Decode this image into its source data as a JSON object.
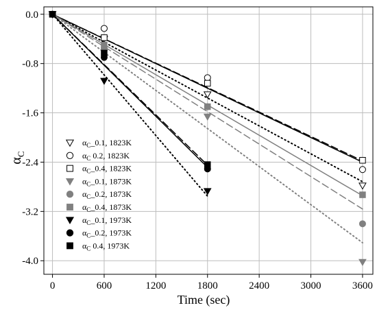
{
  "chart_data": {
    "type": "scatter",
    "xlabel": "Time (sec)",
    "ylabel": {
      "main": "α",
      "sub": "C"
    },
    "xlim": [
      -100,
      3720
    ],
    "ylim": [
      -4.22,
      0.12
    ],
    "xticks": [
      0,
      600,
      1200,
      1800,
      2400,
      3000,
      3600
    ],
    "xtick_labels": [
      "0",
      "600",
      "1200",
      "1800",
      "2400",
      "3000",
      "3600"
    ],
    "yticks": [
      0.0,
      -0.8,
      -1.6,
      -2.4,
      -3.2,
      -4.0
    ],
    "ytick_labels": [
      "0.0",
      "-0.8",
      "-1.6",
      "-2.4",
      "-3.2",
      "-4.0"
    ],
    "grid": true,
    "legend_position": "lower-left",
    "series": [
      {
        "name": {
          "pre": "α",
          "sub": "C",
          "post": "_0.1, 1823K"
        },
        "marker": "triangle-down",
        "filled": false,
        "color": "#000000",
        "x": [
          0,
          600,
          1800,
          3600
        ],
        "y": [
          0.0,
          -0.4,
          -1.3,
          -2.78
        ],
        "fit": {
          "slope": -0.000755,
          "intercept": 0.0,
          "x_end": 3600,
          "style": "dotted",
          "color": "#000000"
        }
      },
      {
        "name": {
          "pre": "α",
          "sub": "C",
          "post": " 0.2, 1823K"
        },
        "marker": "circle",
        "filled": false,
        "color": "#000000",
        "x": [
          0,
          600,
          1800,
          3600
        ],
        "y": [
          0.0,
          -0.23,
          -1.03,
          -2.52
        ],
        "fit": {
          "slope": -0.000667,
          "intercept": 0.0,
          "x_end": 3600,
          "style": "solid",
          "color": "#000000"
        }
      },
      {
        "name": {
          "pre": "α",
          "sub": "C",
          "post": "_0.4, 1823K"
        },
        "marker": "square",
        "filled": false,
        "color": "#000000",
        "x": [
          0,
          600,
          1800,
          3600
        ],
        "y": [
          0.0,
          -0.38,
          -1.12,
          -2.37
        ],
        "fit": {
          "slope": -0.000661,
          "intercept": 0.0,
          "x_end": 3600,
          "style": "dashed",
          "color": "#000000"
        }
      },
      {
        "name": {
          "pre": "α",
          "sub": "C",
          "post": "_0.1, 1873K"
        },
        "marker": "triangle-down",
        "filled": true,
        "color": "#808080",
        "x": [
          0,
          600,
          1800,
          3600
        ],
        "y": [
          0.0,
          -0.62,
          -1.66,
          -4.02
        ],
        "fit": {
          "slope": -0.00103,
          "intercept": 0.0,
          "x_end": 3600,
          "style": "dotted",
          "color": "#808080"
        }
      },
      {
        "name": {
          "pre": "α",
          "sub": "C",
          "post": "_0.2, 1873K"
        },
        "marker": "circle",
        "filled": true,
        "color": "#808080",
        "x": [
          0,
          600,
          1800,
          3600
        ],
        "y": [
          0.0,
          -0.55,
          -1.5,
          -3.4
        ],
        "fit": {
          "slope": -0.000878,
          "intercept": 0.0,
          "x_end": 3600,
          "style": "dashed",
          "color": "#808080"
        }
      },
      {
        "name": {
          "pre": "α",
          "sub": "C",
          "post": "_0.4, 1873K"
        },
        "marker": "square",
        "filled": true,
        "color": "#808080",
        "x": [
          0,
          600,
          1800,
          3600
        ],
        "y": [
          0.0,
          -0.5,
          -1.5,
          -2.93
        ],
        "fit": {
          "slope": -0.000818,
          "intercept": 0.0,
          "x_end": 3600,
          "style": "solid",
          "color": "#808080"
        }
      },
      {
        "name": {
          "pre": "α",
          "sub": "C",
          "post": "_0.1, 1973K"
        },
        "marker": "triangle-down",
        "filled": true,
        "color": "#000000",
        "x": [
          0,
          600,
          1800
        ],
        "y": [
          0.0,
          -1.08,
          -2.87
        ],
        "fit": {
          "slope": -0.00164,
          "intercept": 0.0,
          "x_end": 1800,
          "style": "dotted",
          "color": "#000000"
        }
      },
      {
        "name": {
          "pre": "α",
          "sub": "C",
          "post": "_0.2, 1973K"
        },
        "marker": "circle",
        "filled": true,
        "color": "#000000",
        "x": [
          0,
          600,
          1800
        ],
        "y": [
          0.0,
          -0.7,
          -2.51
        ],
        "fit": {
          "slope": -0.00138,
          "intercept": 0.0,
          "x_end": 1800,
          "style": "solid",
          "color": "#000000"
        }
      },
      {
        "name": {
          "pre": "α",
          "sub": "C",
          "post": " 0.4, 1973K"
        },
        "marker": "square",
        "filled": true,
        "color": "#000000",
        "x": [
          0,
          600,
          1800
        ],
        "y": [
          0.0,
          -0.63,
          -2.44
        ],
        "fit": {
          "slope": -0.00136,
          "intercept": 0.0,
          "x_end": 1800,
          "style": "dashed",
          "color": "#000000"
        }
      }
    ]
  }
}
